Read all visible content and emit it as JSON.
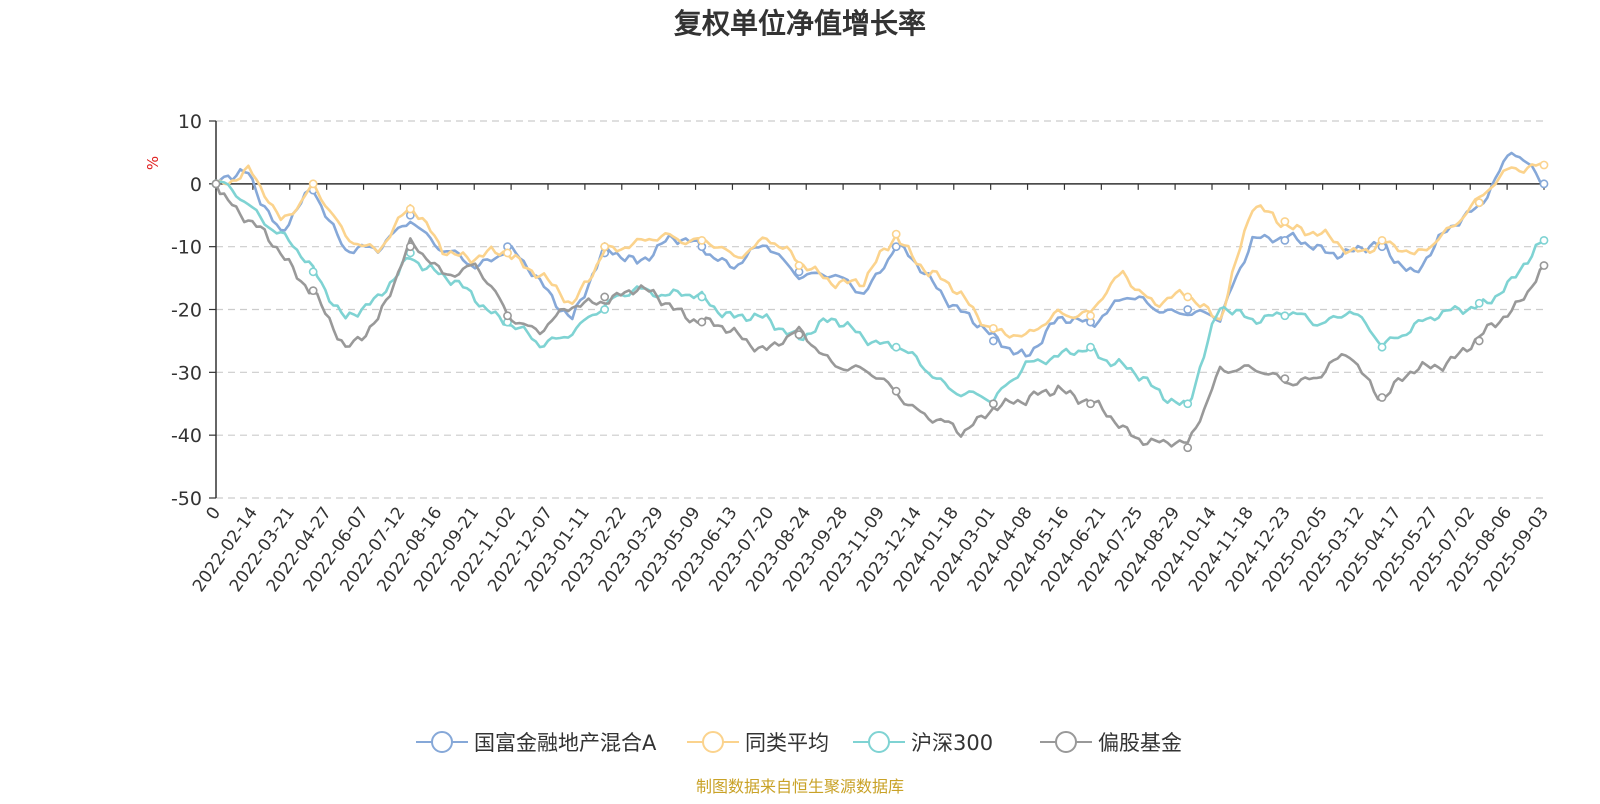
{
  "chart_data": {
    "type": "line",
    "title": "复权单位净值增长率",
    "ylabel": "%",
    "xlabel": "",
    "ylim": [
      -50,
      10
    ],
    "yticks": [
      10,
      0,
      -10,
      -20,
      -30,
      -40,
      -50
    ],
    "grid": true,
    "legend_position": "bottom",
    "source": "制图数据来自恒生聚源数据库",
    "x_ticks": [
      "0",
      "2022-02-14",
      "2022-03-21",
      "2022-04-27",
      "2022-06-07",
      "2022-07-12",
      "2022-08-16",
      "2022-09-21",
      "2022-11-02",
      "2022-12-07",
      "2023-01-11",
      "2023-02-22",
      "2023-03-29",
      "2023-05-09",
      "2023-06-13",
      "2023-07-20",
      "2023-08-24",
      "2023-09-28",
      "2023-11-09",
      "2023-12-14",
      "2024-01-18",
      "2024-03-01",
      "2024-04-08",
      "2024-05-16",
      "2024-06-21",
      "2024-07-25",
      "2024-08-29",
      "2024-10-14",
      "2024-11-18",
      "2024-12-23",
      "2025-02-05",
      "2025-03-12",
      "2025-04-17",
      "2025-05-27",
      "2025-07-02",
      "2025-08-06",
      "2025-09-03"
    ],
    "series": [
      {
        "name": "国富金融地产混合A",
        "color": "#86a8d8",
        "values": [
          0,
          2,
          -8,
          -1,
          -10,
          -11,
          -5,
          -11,
          -13,
          -10,
          -16,
          -21,
          -11,
          -12,
          -9,
          -10,
          -13,
          -10,
          -14,
          -15,
          -17,
          -10,
          -15,
          -20,
          -25,
          -27,
          -22,
          -22,
          -18,
          -20,
          -20,
          -22,
          -8,
          -9,
          -10,
          -11,
          -10,
          -14,
          -8,
          -3,
          5,
          0
        ]
      },
      {
        "name": "同类平均",
        "color": "#fbd38d",
        "values": [
          0,
          2,
          -6,
          0,
          -9,
          -10,
          -4,
          -10,
          -12,
          -11,
          -14,
          -20,
          -10,
          -10,
          -8,
          -9,
          -12,
          -8,
          -13,
          -15,
          -16,
          -8,
          -14,
          -18,
          -23,
          -25,
          -20,
          -21,
          -14,
          -19,
          -18,
          -21,
          -4,
          -6,
          -8,
          -11,
          -9,
          -12,
          -7,
          -3,
          3,
          3
        ]
      },
      {
        "name": "沪深300",
        "color": "#7fd3d3",
        "values": [
          0,
          -3,
          -8,
          -14,
          -21,
          -19,
          -11,
          -15,
          -18,
          -22,
          -26,
          -23,
          -20,
          -16,
          -18,
          -18,
          -21,
          -22,
          -24,
          -22,
          -24,
          -26,
          -30,
          -33,
          -35,
          -28,
          -28,
          -26,
          -29,
          -33,
          -35,
          -20,
          -21,
          -21,
          -22,
          -20,
          -26,
          -22,
          -21,
          -19,
          -16,
          -9
        ]
      },
      {
        "name": "偏股基金",
        "color": "#999999",
        "values": [
          0,
          -6,
          -11,
          -17,
          -27,
          -21,
          -10,
          -14,
          -13,
          -21,
          -23,
          -20,
          -18,
          -17,
          -19,
          -22,
          -24,
          -26,
          -24,
          -28,
          -30,
          -33,
          -37,
          -40,
          -35,
          -35,
          -32,
          -35,
          -39,
          -41,
          -42,
          -29,
          -30,
          -31,
          -31,
          -27,
          -34,
          -30,
          -28,
          -25,
          -20,
          -13
        ]
      }
    ]
  }
}
